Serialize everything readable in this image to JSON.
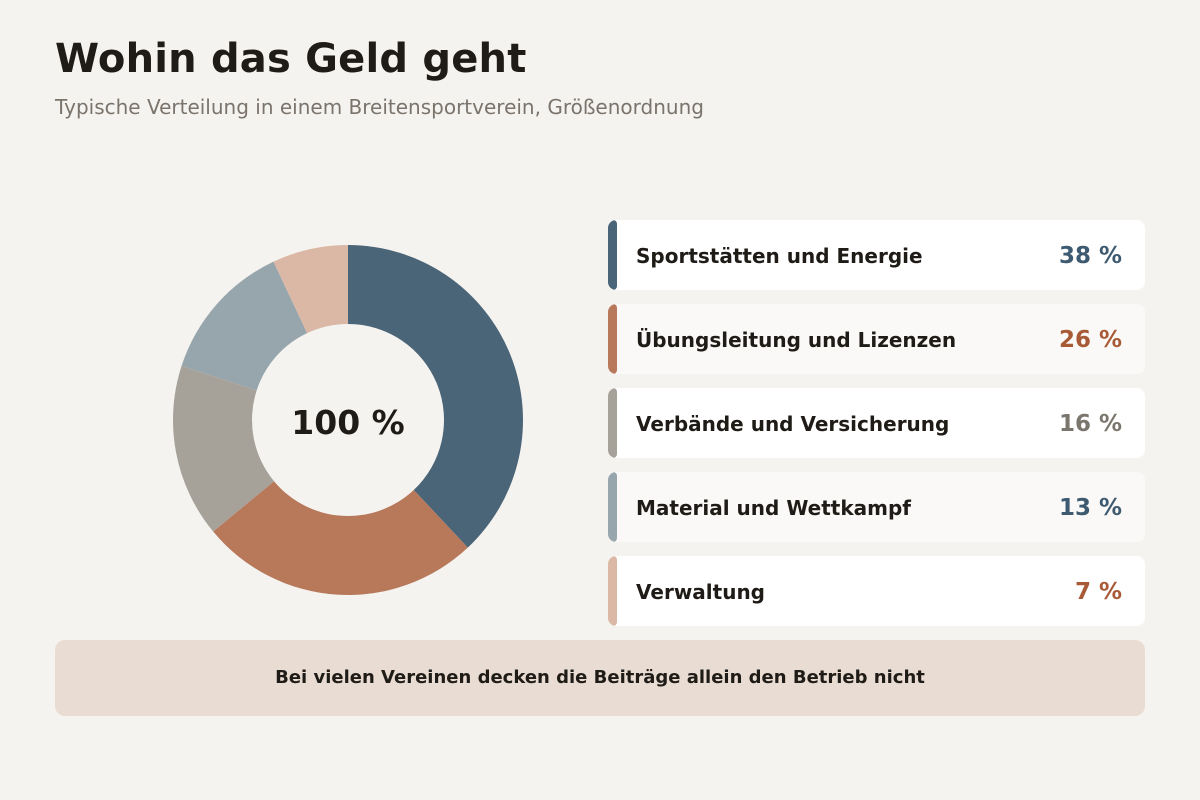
{
  "title": "Wohin das Geld geht",
  "subtitle": "Typische Verteilung in einem Breitensportverein, Größenordnung",
  "center_label": "100 %",
  "chart_data": {
    "type": "pie",
    "title": "Wohin das Geld geht",
    "subtitle": "Typische Verteilung in einem Breitensportverein, Größenordnung",
    "donut": true,
    "center_label": "100 %",
    "legend_placement": "right",
    "categories": [
      "Sportstätten und Energie",
      "Übungsleitung und Lizenzen",
      "Verbände und Versicherung",
      "Material und Wettkampf",
      "Verwaltung"
    ],
    "values": [
      38,
      26,
      16,
      13,
      7
    ],
    "value_labels": [
      "38 %",
      "26 %",
      "16 %",
      "13 %",
      "7 %"
    ],
    "slice_colors": [
      "#4a6478",
      "#b8795b",
      "#a6a29a",
      "#97a5ad",
      "#dbb8a6"
    ],
    "label_colors": [
      "#3e5a70",
      "#a85a36",
      "#7a766e",
      "#3e5a70",
      "#a85a36"
    ]
  },
  "legend": [
    {
      "label": "Sportstätten und Energie",
      "value": "38 %"
    },
    {
      "label": "Übungsleitung und Lizenzen",
      "value": "26 %"
    },
    {
      "label": "Verbände und Versicherung",
      "value": "16 %"
    },
    {
      "label": "Material und Wettkampf",
      "value": "13 %"
    },
    {
      "label": "Verwaltung",
      "value": "7 %"
    }
  ],
  "note": "Bei vielen Vereinen decken die Beiträge allein den Betrieb nicht"
}
